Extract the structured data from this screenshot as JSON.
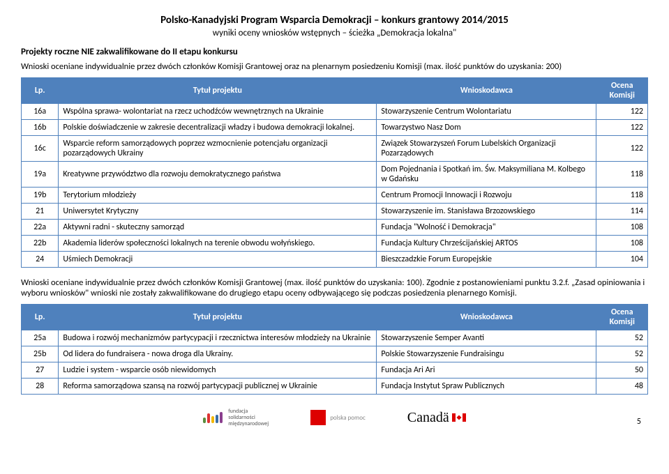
{
  "header": {
    "title": "Polsko-Kanadyjski Program Wsparcia Demokracji – konkurs grantowy 2014/2015",
    "subtitle": "wyniki oceny wniosków wstępnych – ścieżka „Demokracja lokalna\""
  },
  "section1": {
    "heading": "Projekty roczne NIE zakwalifikowane do II etapu konkursu",
    "intro": "Wnioski oceniane indywidualnie przez dwóch członków Komisji Grantowej oraz na plenarnym posiedzeniu Komisji (max. ilość punktów do uzyskania: 200)",
    "columns": {
      "lp": "Lp.",
      "title": "Tytuł projektu",
      "applicant": "Wnioskodawca",
      "score": "Ocena Komisji"
    },
    "rows": [
      {
        "lp": "16a",
        "title": "Wspólna sprawa- wolontariat na rzecz uchodźców wewnętrznych na Ukrainie",
        "applicant": "Stowarzyszenie Centrum Wolontariatu",
        "score": "122"
      },
      {
        "lp": "16b",
        "title": "Polskie doświadczenie w zakresie decentralizacji władzy i budowa demokracji lokalnej.",
        "applicant": "Towarzystwo Nasz Dom",
        "score": "122"
      },
      {
        "lp": "16c",
        "title": "Wsparcie reform samorządowych poprzez wzmocnienie potencjału organizacji pozarządowych Ukrainy",
        "applicant": "Związek Stowarzyszeń Forum Lubelskich Organizacji Pozarządowych",
        "score": "122"
      },
      {
        "lp": "19a",
        "title": "Kreatywne przywództwo dla rozwoju demokratycznego państwa",
        "applicant": "Dom Pojednania i Spotkań im. Św. Maksymiliana M. Kolbego w Gdańsku",
        "score": "118"
      },
      {
        "lp": "19b",
        "title": "Terytorium młodzieży",
        "applicant": "Centrum Promocji Innowacji i Rozwoju",
        "score": "118"
      },
      {
        "lp": "21",
        "title": "Uniwersytet Krytyczny",
        "applicant": "Stowarzyszenie im. Stanisława Brzozowskiego",
        "score": "114"
      },
      {
        "lp": "22a",
        "title": "Aktywni radni - skuteczny samorząd",
        "applicant": "Fundacja \"Wolność i Demokracja\"",
        "score": "108"
      },
      {
        "lp": "22b",
        "title": "Akademia liderów społeczności lokalnych na terenie obwodu wołyńskiego.",
        "applicant": "Fundacja Kultury Chrześcijańskiej ARTOS",
        "score": "108"
      },
      {
        "lp": "24",
        "title": "Uśmiech Demokracji",
        "applicant": "Bieszczadzkie Forum Europejskie",
        "score": "104"
      }
    ]
  },
  "section2": {
    "intro": "Wnioski oceniane indywidualnie przez dwóch członków Komisji Grantowej (max. ilość punktów do uzyskania: 100). Zgodnie z postanowieniami punktu 3.2.f. „Zasad opiniowania i wyboru wniosków\" wnioski nie zostały zakwalifikowane do drugiego etapu oceny odbywającego się podczas posiedzenia plenarnego Komisji.",
    "columns": {
      "lp": "Lp.",
      "title": "Tytuł projektu",
      "applicant": "Wnioskodawca",
      "score": "Ocena Komisji"
    },
    "rows": [
      {
        "lp": "25a",
        "title": "Budowa i rozwój mechanizmów partycypacji i rzecznictwa interesów młodzieży na Ukrainie",
        "applicant": "Stowarzyszenie Semper Avanti",
        "score": "52"
      },
      {
        "lp": "25b",
        "title": "Od lidera do fundraisera - nowa droga dla Ukrainy.",
        "applicant": "Polskie Stowarzyszenie Fundraisingu",
        "score": "52"
      },
      {
        "lp": "27",
        "title": "Ludzie i system - wsparcie osób niewidomych",
        "applicant": "Fundacja Ari Ari",
        "score": "50"
      },
      {
        "lp": "28",
        "title": "Reforma samorządowa szansą na rozwój partycypacji publicznej w Ukrainie",
        "applicant": "Fundacja Instytut Spraw Publicznych",
        "score": "48"
      }
    ]
  },
  "footer": {
    "fed_bars": [
      {
        "h": 8,
        "c": "#5a8e3e"
      },
      {
        "h": 14,
        "c": "#d33"
      },
      {
        "h": 10,
        "c": "#f2b705"
      },
      {
        "h": 12,
        "c": "#3a6ea5"
      },
      {
        "h": 16,
        "c": "#8a3e8e"
      }
    ],
    "fed_text": "fundacja\nsolidarności\nmiędzynarodowej",
    "polska_text": "polska pomoc",
    "canada_text": "Canadä",
    "page": "5"
  }
}
